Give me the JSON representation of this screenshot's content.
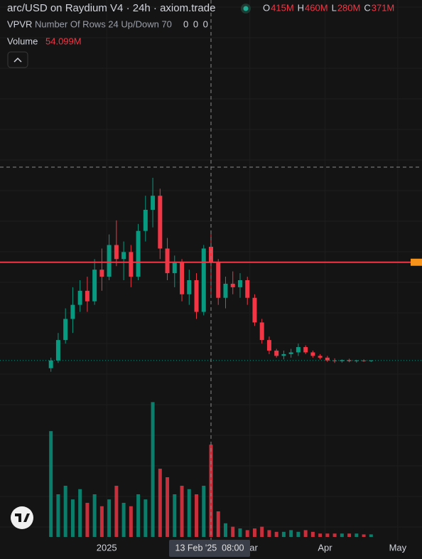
{
  "header": {
    "title": "arc/USD on Raydium V4 · 24h · axiom.trade",
    "legend": {
      "open": {
        "key": "O",
        "value": 415,
        "label": "415M"
      },
      "high": {
        "key": "H",
        "value": 460,
        "label": "460M"
      },
      "low": {
        "key": "L",
        "value": 280,
        "label": "280M"
      },
      "close": {
        "key": "C",
        "value": 371,
        "label": "371M"
      }
    },
    "vpvr": {
      "name": "VPVR",
      "settings": "Number Of Rows 24 Up/Down 70",
      "values": "0 0 0"
    },
    "volume": {
      "name": "Volume",
      "value": 54.099,
      "label": "54.099M"
    }
  },
  "crosshair_label": "13 Feb '25  08:00",
  "chart_data": {
    "type": "candlestick",
    "up_color": "#089981",
    "down_color": "#f23645",
    "x": [
      -23,
      -20,
      -17,
      -14,
      -11,
      -8,
      -5,
      -2,
      1,
      4,
      7,
      10,
      13,
      16,
      19,
      22,
      25,
      28,
      31,
      34,
      37,
      40,
      43,
      46,
      49,
      52,
      55,
      58,
      61,
      64,
      67,
      70,
      73,
      76,
      79,
      82,
      85,
      88,
      91,
      94,
      97,
      100,
      103,
      106,
      109
    ],
    "open": [
      70,
      92,
      150,
      210,
      250,
      290,
      260,
      350,
      330,
      420,
      380,
      400,
      330,
      460,
      520,
      560,
      410,
      340,
      370,
      280,
      320,
      230,
      415,
      371,
      270,
      310,
      300,
      320,
      270,
      200,
      150,
      120,
      105,
      110,
      115,
      130,
      115,
      105,
      100,
      92,
      90,
      93,
      90,
      92,
      91
    ],
    "high": [
      100,
      170,
      240,
      300,
      320,
      330,
      380,
      410,
      450,
      490,
      430,
      420,
      480,
      560,
      611,
      580,
      440,
      390,
      380,
      350,
      340,
      420,
      460,
      380,
      330,
      345,
      340,
      330,
      280,
      210,
      160,
      125,
      120,
      125,
      140,
      135,
      120,
      110,
      105,
      98,
      95,
      97,
      94,
      95,
      93
    ],
    "low": [
      60,
      85,
      140,
      170,
      230,
      230,
      250,
      290,
      320,
      360,
      320,
      300,
      320,
      430,
      470,
      380,
      320,
      300,
      260,
      250,
      210,
      220,
      280,
      250,
      240,
      280,
      270,
      250,
      190,
      140,
      110,
      100,
      95,
      100,
      105,
      110,
      100,
      95,
      88,
      85,
      86,
      87,
      86,
      88,
      88
    ],
    "close": [
      92,
      150,
      210,
      250,
      290,
      260,
      350,
      330,
      420,
      380,
      400,
      330,
      460,
      520,
      560,
      410,
      340,
      370,
      280,
      320,
      230,
      410,
      371,
      270,
      310,
      300,
      320,
      270,
      200,
      150,
      120,
      105,
      110,
      115,
      130,
      115,
      105,
      100,
      92,
      90,
      93,
      90,
      92,
      91,
      92
    ],
    "volume": [
      62,
      25,
      30,
      22,
      28,
      20,
      25,
      18,
      22,
      30,
      20,
      18,
      25,
      22,
      79,
      40,
      35,
      25,
      30,
      28,
      25,
      30,
      54.099,
      15,
      8,
      6,
      5,
      4,
      5,
      6,
      4,
      3,
      3,
      4,
      3,
      4,
      3,
      2,
      2,
      2,
      2,
      2,
      2,
      1.5,
      1.5
    ],
    "xlim": [
      -44,
      130
    ],
    "ylim": [
      25,
      1116
    ],
    "volume_ylim": [
      0,
      80
    ],
    "xticks": [
      {
        "value": 0,
        "label": "2025"
      },
      {
        "value": 59,
        "label": "Mar"
      },
      {
        "value": 90,
        "label": "Apr"
      },
      {
        "value": 120,
        "label": "May"
      }
    ]
  }
}
